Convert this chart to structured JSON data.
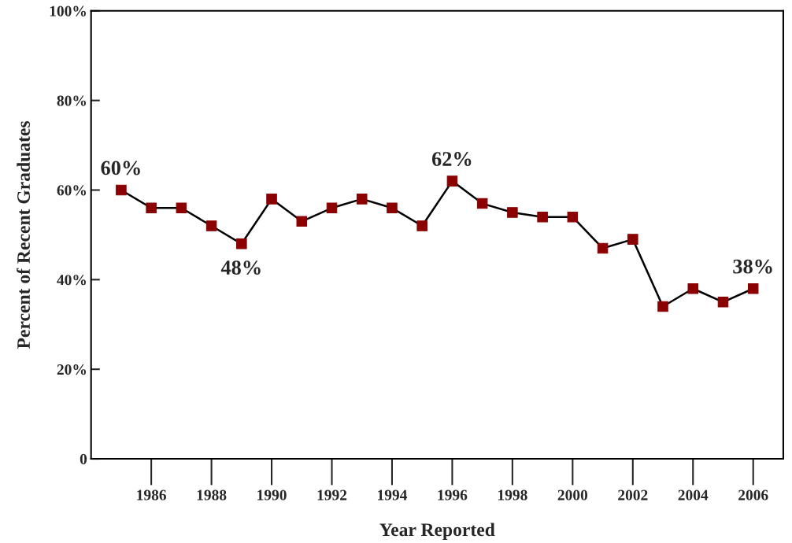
{
  "chart_data": {
    "type": "line",
    "xlabel": "Year Reported",
    "ylabel": "Percent of Recent Graduates",
    "x": [
      1985,
      1986,
      1987,
      1988,
      1989,
      1990,
      1991,
      1992,
      1993,
      1994,
      1995,
      1996,
      1997,
      1998,
      1999,
      2000,
      2001,
      2002,
      2003,
      2004,
      2005,
      2006
    ],
    "series": [
      {
        "color": "#8b0000",
        "values": [
          60,
          56,
          56,
          52,
          48,
          58,
          53,
          56,
          58,
          56,
          52,
          62,
          57,
          55,
          54,
          54,
          47,
          49,
          34,
          38,
          35,
          38
        ]
      }
    ],
    "xlim": [
      1984,
      2007
    ],
    "xticks": [
      1986,
      1988,
      1990,
      1992,
      1994,
      1996,
      1998,
      2000,
      2002,
      2004,
      2006
    ],
    "ylim": [
      0,
      100
    ],
    "yticks": [
      {
        "value": 0,
        "label": "0"
      },
      {
        "value": 20,
        "label": "20%"
      },
      {
        "value": 40,
        "label": "40%"
      },
      {
        "value": 60,
        "label": "60%"
      },
      {
        "value": 80,
        "label": "80%"
      },
      {
        "value": 100,
        "label": "100%"
      }
    ],
    "marker": "square",
    "line_style": "solid",
    "grid": false,
    "legend": false,
    "annotations": [
      {
        "text": "60%",
        "x": 1985,
        "y": 60
      },
      {
        "text": "48%",
        "x": 1989,
        "y": 48
      },
      {
        "text": "62%",
        "x": 1996,
        "y": 62
      },
      {
        "text": "38%",
        "x": 2006,
        "y": 38
      }
    ]
  }
}
